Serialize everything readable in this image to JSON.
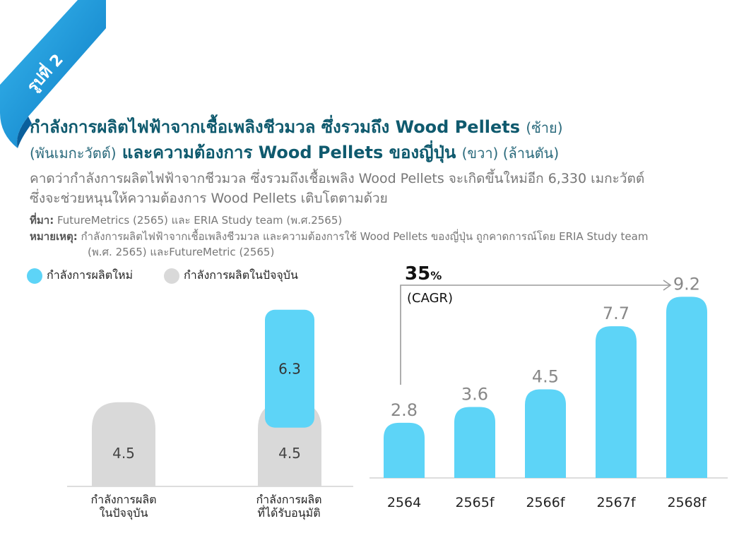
{
  "badge": {
    "label": "รูปที่ 2"
  },
  "title": {
    "line1_bold": "กำลังการผลิตไฟฟ้าจากเชื้อเพลิงชีวมวล ซึ่งรวมถึง Wood Pellets",
    "line1_note": "(ซ้าย)",
    "line2_note": "(พันเมกะวัตต์)",
    "line2_bold": "และความต้องการ Wood Pellets ของญี่ปุ่น",
    "line2_tail": "(ขวา) (ล้านตัน)"
  },
  "subtitle": {
    "line1": "คาดว่ากำลังการผลิตไฟฟ้าจากชีวมวล ซึ่งรวมถึงเชื้อเพลิง Wood  Pellets  จะเกิดขึ้นใหม่อีก 6,330  เมกะวัตต์",
    "line2": "ซึ่งจะช่วยหนุนให้ความต้องการ Wood Pellets เติบโตตามด้วย"
  },
  "source": {
    "label": "ที่มา:",
    "text": "FutureMetrics (2565) และ ERIA Study team (พ.ศ.2565)",
    "note_label": "หมายเหตุ:",
    "note_text1": "กำลังการผลิตไฟฟ้าจากเชื้อเพลิงชีวมวล และความต้องการใช้ Wood Pellets ของญี่ปุ่น ถูกคาดการณ์โดย ERIA Study team",
    "note_text2": "(พ.ศ. 2565) และFutureMetric (2565)"
  },
  "colors": {
    "new": "#5dd4f7",
    "current": "#d9d9d9",
    "title": "#0f5a6e",
    "ribbon": "#1b9ad6"
  },
  "chart_data": [
    {
      "type": "bar",
      "stacked": true,
      "legend": "top-left",
      "categories": [
        "กำลังการผลิต\nในปัจจุบัน",
        "กำลังการผลิต\nที่ได้รับอนุมัติ"
      ],
      "series": [
        {
          "name": "กำลังการผลิตในปัจจุบัน",
          "values": [
            4.5,
            4.5
          ]
        },
        {
          "name": "กำลังการผลิตใหม่",
          "values": [
            0,
            6.3
          ]
        }
      ],
      "labels": {
        "current": [
          "4.5",
          "4.5"
        ],
        "new": [
          "",
          "6.3"
        ]
      }
    },
    {
      "type": "bar",
      "categories": [
        "2564",
        "2565f",
        "2566f",
        "2567f",
        "2568f"
      ],
      "values": [
        2.8,
        3.6,
        4.5,
        7.7,
        9.2
      ],
      "value_labels": [
        "2.8",
        "3.6",
        "4.5",
        "7.7",
        "9.2"
      ],
      "annotation": {
        "value": "35",
        "unit": "%",
        "label": "(CAGR)"
      }
    }
  ]
}
